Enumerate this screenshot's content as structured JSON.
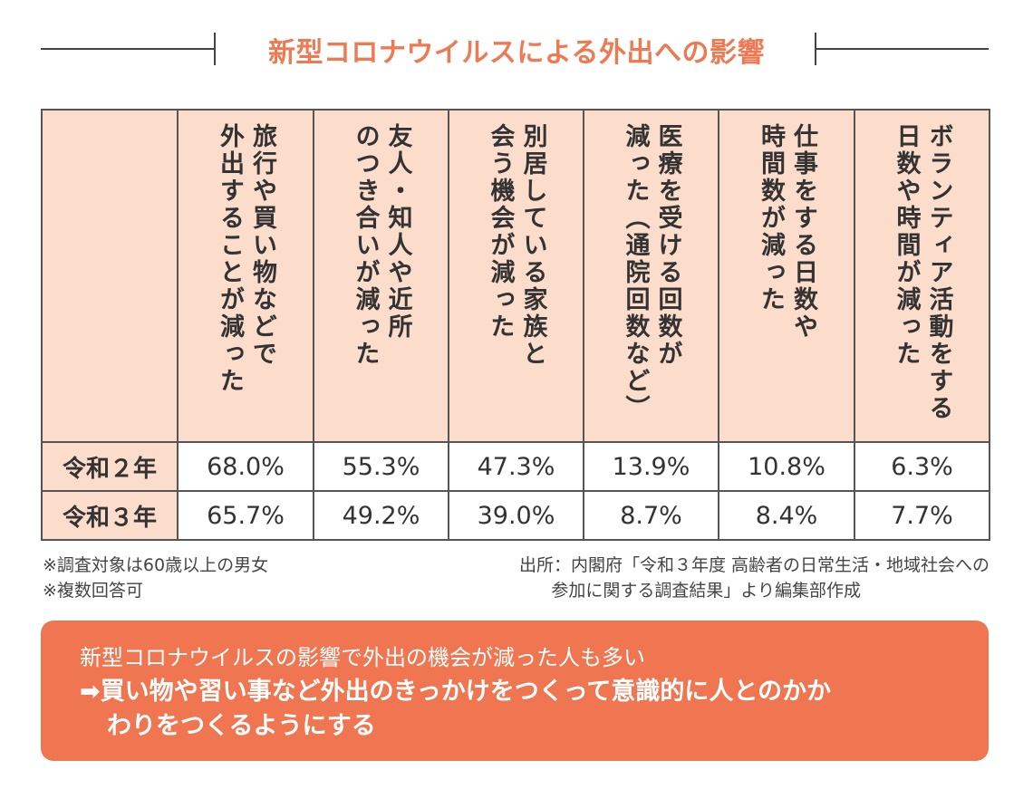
{
  "title": "新型コロナウイルスによる外出への影響",
  "table": {
    "columns": [
      "旅行や買い物などで\n外出することが減った",
      "友人・知人や近所\nのつき合いが減った",
      "別居している家族と\n会う機会が減った",
      "医療を受ける回数が\n減った（通院回数など）",
      "仕事をする日数や\n時間数が減った",
      "ボランティア活動をする\n日数や時間が減った"
    ],
    "rows": [
      {
        "label": "令和２年",
        "values": [
          "68.0%",
          "55.3%",
          "47.3%",
          "13.9%",
          "10.8%",
          "6.3%"
        ]
      },
      {
        "label": "令和３年",
        "values": [
          "65.7%",
          "49.2%",
          "39.0%",
          "8.7%",
          "8.4%",
          "7.7%"
        ]
      }
    ]
  },
  "notes": {
    "survey_target": "※調査対象は60歳以上の男女",
    "multiple_answers": "※複数回答可",
    "source_line1": "出所：内閣府「令和３年度 高齢者の日常生活・地域社会への",
    "source_line2": "参加に関する調査結果」より編集部作成"
  },
  "callout": {
    "line1": "新型コロナウイルスの影響で外出の機会が減った人も多い",
    "line2": "➡買い物や習い事など外出のきっかけをつくって意識的に人とのかか",
    "line3": "わりをつくるようにする"
  },
  "colors": {
    "title": "#ee7a54",
    "header_fill": "#fcdccb",
    "callout_fill": "#ef7651"
  }
}
